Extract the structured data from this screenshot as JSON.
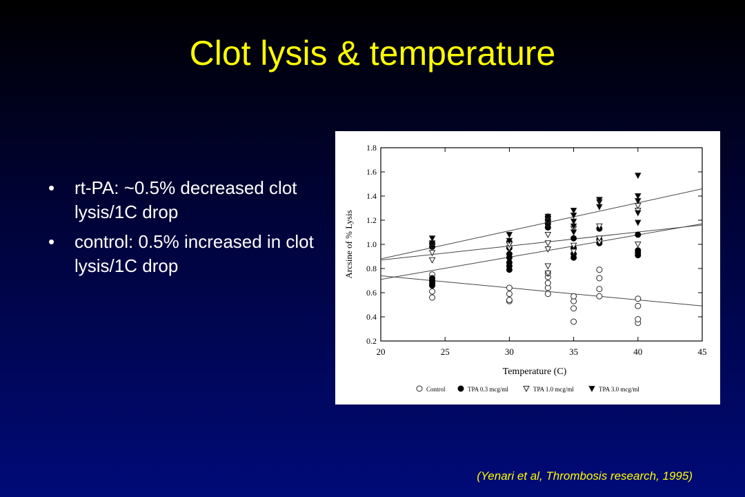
{
  "slide": {
    "title": "Clot lysis & temperature",
    "bullets": [
      "rt-PA: ~0.5% decreased clot lysis/1C drop",
      "control: 0.5% increased in clot lysis/1C drop"
    ],
    "citation": "(Yenari et al, Thrombosis research, 1995)",
    "title_color": "#ffff00",
    "text_color": "#ffffff"
  },
  "chart_data": {
    "type": "scatter",
    "xlabel": "Temperature (C)",
    "ylabel": "Arcsine of % Lysis",
    "xlim": [
      20,
      45
    ],
    "ylim": [
      0.2,
      1.8
    ],
    "x_ticks": [
      20,
      25,
      30,
      35,
      40,
      45
    ],
    "y_ticks": [
      0.2,
      0.4,
      0.6,
      0.8,
      1.0,
      1.2,
      1.4,
      1.6,
      1.8
    ],
    "y_tick_labels": [
      "0.2",
      "0.4",
      "0.6",
      "0.8",
      "1.0",
      "1.2",
      "1.4",
      "1.6",
      "1.8"
    ],
    "grid": false,
    "legend_position": "bottom",
    "series": [
      {
        "name": "Control",
        "marker": "open-circle",
        "points": [
          [
            24,
            0.56
          ],
          [
            24,
            0.61
          ],
          [
            24,
            0.66
          ],
          [
            24,
            0.7
          ],
          [
            24,
            0.75
          ],
          [
            30,
            0.53
          ],
          [
            30,
            0.59
          ],
          [
            30,
            0.64
          ],
          [
            30,
            0.54
          ],
          [
            33,
            0.59
          ],
          [
            33,
            0.64
          ],
          [
            33,
            0.68
          ],
          [
            33,
            0.73
          ],
          [
            33,
            0.76
          ],
          [
            35,
            0.36
          ],
          [
            35,
            0.47
          ],
          [
            35,
            0.53
          ],
          [
            35,
            0.57
          ],
          [
            37,
            0.57
          ],
          [
            37,
            0.63
          ],
          [
            37,
            0.72
          ],
          [
            37,
            0.79
          ],
          [
            40,
            0.35
          ],
          [
            40,
            0.38
          ],
          [
            40,
            0.49
          ],
          [
            40,
            0.55
          ]
        ],
        "fit": {
          "x": [
            20,
            45
          ],
          "y": [
            0.74,
            0.49
          ]
        }
      },
      {
        "name": "TPA 0.3 mcg/ml",
        "marker": "filled-circle",
        "points": [
          [
            24,
            0.66
          ],
          [
            24,
            0.68
          ],
          [
            24,
            0.7
          ],
          [
            24,
            0.72
          ],
          [
            24,
            0.98
          ],
          [
            24,
            1.01
          ],
          [
            30,
            0.79
          ],
          [
            30,
            0.82
          ],
          [
            30,
            0.85
          ],
          [
            30,
            0.89
          ],
          [
            30,
            0.92
          ],
          [
            30,
            0.97
          ],
          [
            30,
            1.02
          ],
          [
            33,
            1.14
          ],
          [
            33,
            1.17
          ],
          [
            33,
            1.2
          ],
          [
            33,
            1.23
          ],
          [
            35,
            0.89
          ],
          [
            35,
            0.92
          ],
          [
            35,
            0.97
          ],
          [
            35,
            1.05
          ],
          [
            37,
            1.01
          ],
          [
            37,
            1.04
          ],
          [
            37,
            1.13
          ],
          [
            40,
            0.91
          ],
          [
            40,
            0.93
          ],
          [
            40,
            0.95
          ],
          [
            40,
            1.08
          ]
        ],
        "fit": {
          "x": [
            20,
            45
          ],
          "y": [
            0.71,
            1.17
          ]
        }
      },
      {
        "name": "TPA 1.0 mcg/ml",
        "marker": "open-triangle-down",
        "points": [
          [
            24,
            0.87
          ],
          [
            24,
            0.93
          ],
          [
            30,
            0.97
          ],
          [
            30,
            1.0
          ],
          [
            33,
            0.76
          ],
          [
            33,
            0.82
          ],
          [
            33,
            0.96
          ],
          [
            33,
            1.01
          ],
          [
            33,
            1.08
          ],
          [
            35,
            0.94
          ],
          [
            35,
            0.99
          ],
          [
            35,
            1.13
          ],
          [
            37,
            1.02
          ],
          [
            37,
            1.05
          ],
          [
            37,
            1.15
          ],
          [
            40,
            1.0
          ],
          [
            40,
            1.28
          ],
          [
            40,
            1.32
          ]
        ],
        "fit": {
          "x": [
            20,
            45
          ],
          "y": [
            0.87,
            1.16
          ]
        }
      },
      {
        "name": "TPA 3.0 mcg/ml",
        "marker": "filled-triangle-down",
        "points": [
          [
            24,
            0.98
          ],
          [
            24,
            1.01
          ],
          [
            24,
            1.05
          ],
          [
            30,
            1.03
          ],
          [
            30,
            1.08
          ],
          [
            33,
            1.16
          ],
          [
            33,
            1.19
          ],
          [
            33,
            1.23
          ],
          [
            35,
            1.1
          ],
          [
            35,
            1.15
          ],
          [
            35,
            1.19
          ],
          [
            35,
            1.24
          ],
          [
            35,
            1.28
          ],
          [
            37,
            1.31
          ],
          [
            37,
            1.35
          ],
          [
            37,
            1.37
          ],
          [
            40,
            1.18
          ],
          [
            40,
            1.26
          ],
          [
            40,
            1.36
          ],
          [
            40,
            1.4
          ],
          [
            40,
            1.57
          ]
        ],
        "fit": {
          "x": [
            20,
            45
          ],
          "y": [
            0.88,
            1.46
          ]
        }
      }
    ]
  }
}
